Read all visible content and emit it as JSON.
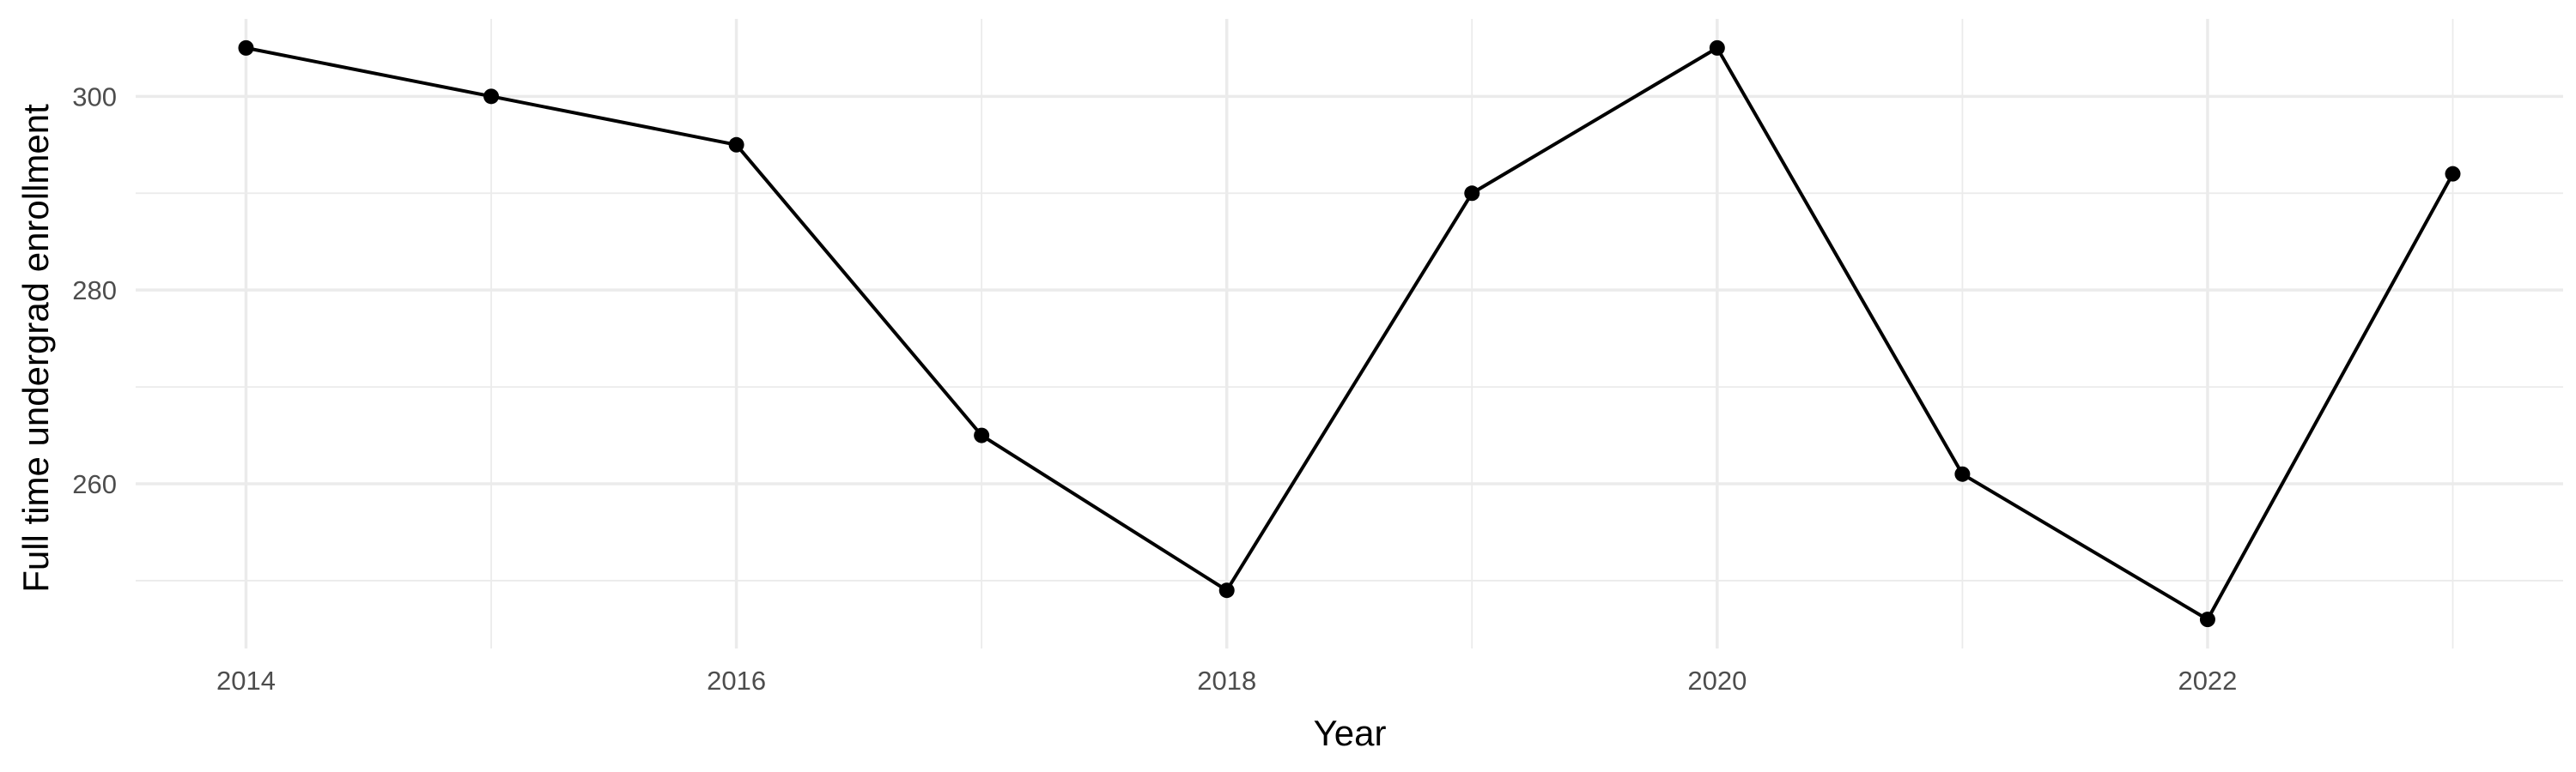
{
  "chart_data": {
    "type": "line",
    "title": "",
    "xlabel": "Year",
    "ylabel": "Full time undergrad enrollment",
    "x": [
      2014,
      2015,
      2016,
      2017,
      2018,
      2019,
      2020,
      2021,
      2022,
      2023
    ],
    "series": [
      {
        "values": [
          305,
          300,
          295,
          265,
          249,
          290,
          305,
          261,
          246,
          292
        ]
      }
    ],
    "xlim": [
      2013.55,
      2023.45
    ],
    "ylim": [
      243,
      308
    ],
    "x_ticks": [
      2014,
      2016,
      2018,
      2020,
      2022
    ],
    "x_tick_labels": [
      "2014",
      "2016",
      "2018",
      "2020",
      "2022"
    ],
    "y_ticks": [
      260,
      280,
      300
    ],
    "y_tick_labels": [
      "260",
      "280",
      "300"
    ],
    "x_minor_ticks": [
      2015,
      2017,
      2019,
      2021,
      2023
    ],
    "y_minor_ticks": [
      250,
      270,
      290
    ],
    "grid": true,
    "legend": "none",
    "colors": {
      "line": "#000000",
      "point": "#000000",
      "grid": "#ebebeb",
      "tick_text": "#4d4d4d"
    }
  }
}
